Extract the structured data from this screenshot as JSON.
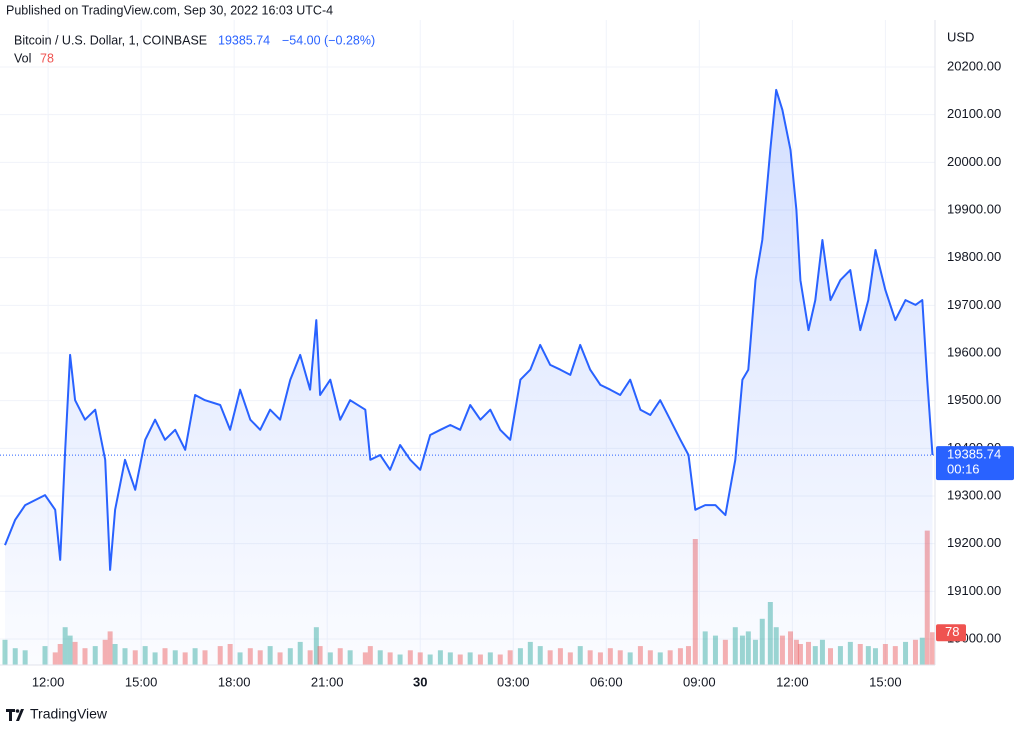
{
  "chart_data": {
    "type": "area",
    "published": "Published on TradingView.com, Sep 30, 2022 16:03 UTC-4",
    "change": "−54.00 (−0.28%)",
    "countdown": "00:16",
    "currency": "USD",
    "brand": "TradingView",
    "color": "#2962ff",
    "x": [
      10.61,
      10.94,
      11.26,
      11.9,
      12.23,
      12.39,
      12.55,
      12.71,
      12.87,
      13.19,
      13.52,
      13.84,
      14.0,
      14.16,
      14.48,
      14.81,
      15.13,
      15.45,
      15.77,
      16.1,
      16.42,
      16.74,
      17.06,
      17.55,
      17.87,
      18.19,
      18.52,
      18.84,
      19.16,
      19.48,
      19.81,
      20.13,
      20.45,
      20.65,
      20.77,
      21.1,
      21.42,
      21.74,
      22.23,
      22.39,
      22.71,
      23.03,
      23.35,
      23.68,
      24.0,
      24.32,
      24.65,
      24.97,
      25.29,
      25.61,
      25.94,
      26.26,
      26.58,
      26.9,
      27.23,
      27.55,
      27.87,
      28.19,
      28.52,
      28.84,
      29.16,
      29.48,
      29.81,
      30.13,
      30.45,
      30.77,
      31.1,
      31.42,
      31.74,
      32.06,
      32.39,
      32.65,
      32.87,
      33.19,
      33.52,
      33.84,
      34.16,
      34.39,
      34.58,
      34.81,
      35.03,
      35.29,
      35.48,
      35.68,
      35.94,
      36.13,
      36.26,
      36.52,
      36.74,
      36.97,
      37.23,
      37.55,
      37.87,
      38.19,
      38.45,
      38.68,
      39.0,
      39.32,
      39.65,
      39.97,
      40.19,
      40.35,
      40.52
    ],
    "series": [
      {
        "name": "Bitcoin / U.S. Dollar, 1, COINBASE",
        "color": "#2962ff",
        "values": [
          19197,
          19250,
          19281,
          19302,
          19271,
          19166,
          19397,
          19596,
          19501,
          19460,
          19481,
          19376,
          19145,
          19271,
          19376,
          19313,
          19418,
          19460,
          19418,
          19439,
          19397,
          19512,
          19501,
          19491,
          19439,
          19523,
          19460,
          19439,
          19481,
          19460,
          19544,
          19596,
          19523,
          19669,
          19512,
          19544,
          19460,
          19501,
          19481,
          19376,
          19386,
          19355,
          19407,
          19376,
          19355,
          19428,
          19439,
          19449,
          19439,
          19491,
          19460,
          19481,
          19439,
          19418,
          19544,
          19565,
          19617,
          19575,
          19565,
          19554,
          19617,
          19565,
          19533,
          19523,
          19512,
          19544,
          19481,
          19470,
          19501,
          19460,
          19418,
          19386,
          19271,
          19281,
          19281,
          19260,
          19376,
          19544,
          19565,
          19753,
          19837,
          20026,
          20152,
          20110,
          20026,
          19900,
          19753,
          19648,
          19711,
          19837,
          19711,
          19753,
          19774,
          19648,
          19711,
          19816,
          19732,
          19669,
          19711,
          19701,
          19711,
          19544,
          19385.74
        ]
      }
    ],
    "volume": {
      "name": "Vol",
      "up_color": "#26a69a",
      "down_color": "#ef5350",
      "values": [
        60,
        40,
        35,
        45,
        30,
        50,
        90,
        70,
        55,
        40,
        45,
        60,
        80,
        50,
        40,
        35,
        45,
        30,
        40,
        35,
        30,
        40,
        35,
        45,
        50,
        30,
        40,
        35,
        45,
        30,
        40,
        55,
        35,
        90,
        45,
        30,
        40,
        35,
        30,
        45,
        35,
        30,
        25,
        35,
        30,
        25,
        35,
        30,
        25,
        30,
        25,
        30,
        25,
        35,
        40,
        55,
        45,
        35,
        40,
        30,
        45,
        35,
        30,
        40,
        35,
        30,
        45,
        35,
        30,
        35,
        40,
        45,
        300,
        80,
        70,
        60,
        90,
        70,
        80,
        60,
        110,
        150,
        90,
        70,
        80,
        60,
        50,
        55,
        45,
        60,
        40,
        45,
        55,
        50,
        45,
        40,
        50,
        45,
        55,
        60,
        65,
        320,
        78
      ]
    },
    "xlim": [
      10.61,
      40.6
    ],
    "xticks": [
      {
        "value": 12,
        "label": "12:00"
      },
      {
        "value": 15,
        "label": "15:00"
      },
      {
        "value": 18,
        "label": "18:00"
      },
      {
        "value": 21,
        "label": "21:00"
      },
      {
        "value": 24,
        "label": "30"
      },
      {
        "value": 27,
        "label": "03:00"
      },
      {
        "value": 30,
        "label": "06:00"
      },
      {
        "value": 33,
        "label": "09:00"
      },
      {
        "value": 36,
        "label": "12:00"
      },
      {
        "value": 39,
        "label": "15:00"
      }
    ],
    "ylim": [
      18945.5,
      20298.6
    ],
    "yticks": [
      {
        "value": 19000,
        "label": "19000.00"
      },
      {
        "value": 19100,
        "label": "19100.00"
      },
      {
        "value": 19200,
        "label": "19200.00"
      },
      {
        "value": 19300,
        "label": "19300.00"
      },
      {
        "value": 19400,
        "label": "19400.00"
      },
      {
        "value": 19500,
        "label": "19500.00"
      },
      {
        "value": 19600,
        "label": "19600.00"
      },
      {
        "value": 19700,
        "label": "19700.00"
      },
      {
        "value": 19800,
        "label": "19800.00"
      },
      {
        "value": 19900,
        "label": "19900.00"
      },
      {
        "value": 20000,
        "label": "20000.00"
      },
      {
        "value": 20100,
        "label": "20100.00"
      },
      {
        "value": 20200,
        "label": "20200.00"
      }
    ],
    "grid": true
  }
}
